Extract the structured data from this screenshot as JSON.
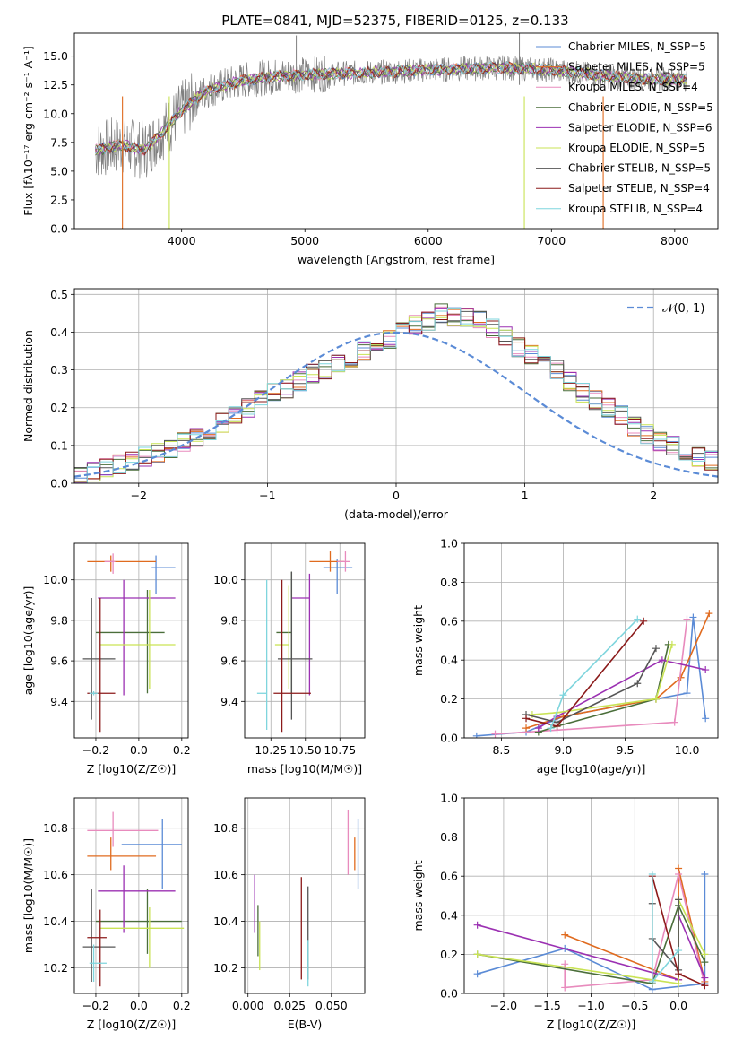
{
  "colors": {
    "chabrier_miles": "#5b8bd6",
    "salpeter_miles": "#e06b1f",
    "kroupa_miles": "#e88bbd",
    "chabrier_elodie": "#4a6e3a",
    "salpeter_elodie": "#9b30b2",
    "kroupa_elodie": "#c9e355",
    "chabrier_stelib": "#555555",
    "salpeter_stelib": "#8b1a1a",
    "kroupa_stelib": "#7fd5dd",
    "spectrum": "#808080",
    "gauss": "#5b8bd6",
    "grid": "#b0b0b0"
  },
  "chart_data": [
    {
      "id": "spectrum",
      "type": "line",
      "title": "PLATE=0841, MJD=52375, FIBERID=0125, z=0.133",
      "xlabel": "wavelength [Angstrom, rest frame]",
      "ylabel": "Flux [fλ10⁻¹⁷ erg cm⁻² s⁻¹ A⁻¹]",
      "xlim": [
        3130,
        8350
      ],
      "ylim": [
        0,
        17
      ],
      "xticks": [
        "4000",
        "5000",
        "6000",
        "7000",
        "8000"
      ],
      "yticks": [
        "0.0",
        "2.5",
        "5.0",
        "7.5",
        "10.0",
        "12.5",
        "15.0"
      ],
      "grid": false,
      "legend_position": "top-right",
      "legend": [
        "Chabrier MILES, N_SSP=5",
        "Salpeter MILES, N_SSP=5",
        "Kroupa MILES, N_SSP=4",
        "Chabrier ELODIE, N_SSP=5",
        "Salpeter ELODIE, N_SSP=6",
        "Kroupa ELODIE, N_SSP=5",
        "Chabrier STELIB, N_SSP=5",
        "Salpeter STELIB, N_SSP=4",
        "Kroupa STELIB, N_SSP=4"
      ],
      "continuum_x": [
        3300,
        3500,
        3700,
        3900,
        4000,
        4200,
        4500,
        4800,
        5000,
        5300,
        5600,
        6000,
        6300,
        6600,
        7000,
        7400,
        7800,
        8100
      ],
      "continuum_y": [
        6.8,
        7.3,
        6.8,
        9.0,
        10.3,
        12.0,
        12.9,
        13.3,
        13.4,
        13.5,
        13.6,
        13.8,
        13.9,
        14.0,
        13.8,
        13.3,
        13.0,
        13.0
      ],
      "drops": [
        [
          3520,
          0
        ],
        [
          3900,
          0
        ],
        [
          6780,
          0
        ],
        [
          7420,
          0
        ]
      ],
      "spikes": [
        [
          6740,
          17
        ],
        [
          4930,
          16.8
        ]
      ]
    },
    {
      "id": "residuals",
      "type": "bar",
      "xlabel": "(data-model)/error",
      "ylabel": "Normed distribution",
      "xlim": [
        -2.5,
        2.5
      ],
      "ylim": [
        0,
        0.515
      ],
      "xticks": [
        "−2",
        "−1",
        "0",
        "1",
        "2"
      ],
      "yticks": [
        "0.0",
        "0.1",
        "0.2",
        "0.3",
        "0.4",
        "0.5"
      ],
      "grid": true,
      "legend_position": "top-right",
      "legend": [
        "𝒩(0, 1)"
      ],
      "bin_width": 0.1,
      "bin_start": -2.5,
      "reference_hist": [
        0.02,
        0.03,
        0.04,
        0.05,
        0.06,
        0.07,
        0.08,
        0.09,
        0.11,
        0.12,
        0.14,
        0.16,
        0.18,
        0.2,
        0.22,
        0.24,
        0.25,
        0.27,
        0.29,
        0.3,
        0.32,
        0.33,
        0.35,
        0.36,
        0.38,
        0.4,
        0.42,
        0.43,
        0.45,
        0.44,
        0.44,
        0.43,
        0.41,
        0.39,
        0.36,
        0.34,
        0.32,
        0.3,
        0.27,
        0.24,
        0.22,
        0.2,
        0.18,
        0.15,
        0.13,
        0.11,
        0.1,
        0.08,
        0.07,
        0.06,
        0.05,
        0.05,
        0.04,
        0.04,
        0.03,
        0.03,
        0.03,
        0.03,
        0.03,
        0.02
      ]
    },
    {
      "id": "age_vs_Z",
      "type": "scatter",
      "xlabel": "Z [log10(Z/Z☉)]",
      "ylabel": "age [log10(age/yr)]",
      "xlim": [
        -0.3,
        0.23
      ],
      "ylim": [
        9.22,
        10.18
      ],
      "xticks": [
        "−0.2",
        "0.0",
        "0.2"
      ],
      "yticks": [
        "9.4",
        "9.6",
        "9.8",
        "10.0"
      ],
      "grid": true,
      "points": [
        {
          "series": "chabrier_miles",
          "x": 0.08,
          "y": 10.06,
          "xerr": [
            0.02,
            0.09
          ],
          "yerr": [
            0.13,
            0.06
          ]
        },
        {
          "series": "salpeter_miles",
          "x": -0.13,
          "y": 10.09,
          "xerr": [
            0.11,
            0.21
          ],
          "yerr": [
            0.05,
            0.03
          ]
        },
        {
          "series": "kroupa_miles",
          "x": -0.12,
          "y": 10.09,
          "xerr": [
            0.04,
            0.01
          ],
          "yerr": [
            0.06,
            0.04
          ]
        },
        {
          "series": "chabrier_elodie",
          "x": 0.04,
          "y": 9.74,
          "xerr": [
            0.24,
            0.08
          ],
          "yerr": [
            0.3,
            0.21
          ]
        },
        {
          "series": "salpeter_elodie",
          "x": -0.07,
          "y": 9.91,
          "xerr": [
            0.12,
            0.24
          ],
          "yerr": [
            0.48,
            0.09
          ]
        },
        {
          "series": "kroupa_elodie",
          "x": 0.05,
          "y": 9.68,
          "xerr": [
            0.23,
            0.12
          ],
          "yerr": [
            0.22,
            0.27
          ]
        },
        {
          "series": "chabrier_stelib",
          "x": -0.22,
          "y": 9.61,
          "xerr": [
            0.04,
            0.11
          ],
          "yerr": [
            0.3,
            0.3
          ]
        },
        {
          "series": "salpeter_stelib",
          "x": -0.18,
          "y": 9.44,
          "xerr": [
            0.06,
            0.07
          ],
          "yerr": [
            0.19,
            0.47
          ]
        },
        {
          "series": "kroupa_stelib",
          "x": -0.21,
          "y": 9.44,
          "xerr": [
            0.02,
            0.02
          ],
          "yerr": [
            0.01,
            0.01
          ]
        }
      ]
    },
    {
      "id": "age_vs_mass",
      "type": "scatter",
      "xlabel": "mass [log10(M/M☉)]",
      "ylabel": "",
      "xlim": [
        10.06,
        10.93
      ],
      "ylim": [
        9.22,
        10.18
      ],
      "xticks": [
        "10.25",
        "10.50",
        "10.75"
      ],
      "yticks": [
        "9.4",
        "9.6",
        "9.8",
        "10.0"
      ],
      "grid": true,
      "points": [
        {
          "series": "chabrier_miles",
          "x": 10.73,
          "y": 10.06,
          "xerr": [
            0.1,
            0.11
          ],
          "yerr": [
            0.13,
            0.04
          ]
        },
        {
          "series": "salpeter_miles",
          "x": 10.68,
          "y": 10.09,
          "xerr": [
            0.15,
            0.1
          ],
          "yerr": [
            0.05,
            0.05
          ]
        },
        {
          "series": "kroupa_miles",
          "x": 10.79,
          "y": 10.09,
          "xerr": [
            0.06,
            0.03
          ],
          "yerr": [
            0.05,
            0.05
          ]
        },
        {
          "series": "chabrier_elodie",
          "x": 10.4,
          "y": 9.74,
          "xerr": [
            0.11,
            0.0
          ],
          "yerr": [
            0.3,
            0.3
          ]
        },
        {
          "series": "salpeter_elodie",
          "x": 10.53,
          "y": 9.91,
          "xerr": [
            0.13,
            0.0
          ],
          "yerr": [
            0.48,
            0.12
          ]
        },
        {
          "series": "kroupa_elodie",
          "x": 10.38,
          "y": 9.68,
          "xerr": [
            0.1,
            0.0
          ],
          "yerr": [
            0.22,
            0.29
          ]
        },
        {
          "series": "chabrier_stelib",
          "x": 10.4,
          "y": 9.61,
          "xerr": [
            0.1,
            0.15
          ],
          "yerr": [
            0.3,
            0.43
          ]
        },
        {
          "series": "salpeter_stelib",
          "x": 10.33,
          "y": 9.44,
          "xerr": [
            0.06,
            0.21
          ],
          "yerr": [
            0.19,
            0.56
          ]
        },
        {
          "series": "kroupa_stelib",
          "x": 10.22,
          "y": 9.44,
          "xerr": [
            0.07,
            0.0
          ],
          "yerr": [
            0.18,
            0.56
          ]
        }
      ]
    },
    {
      "id": "weight_vs_age",
      "type": "line",
      "xlabel": "age  [log10(age/yr)]",
      "ylabel": "mass weight",
      "xlim": [
        8.2,
        10.25
      ],
      "ylim": [
        0,
        1
      ],
      "xticks": [
        "8.5",
        "9.0",
        "9.5",
        "10.0"
      ],
      "yticks": [
        "0.0",
        "0.2",
        "0.4",
        "0.6",
        "0.8",
        "1.0"
      ],
      "grid": true,
      "series": [
        {
          "key": "chabrier_miles",
          "x": [
            8.3,
            8.7,
            9.0,
            10.0,
            10.05,
            10.15
          ],
          "y": [
            0.01,
            0.03,
            0.11,
            0.23,
            0.62,
            0.1
          ]
        },
        {
          "key": "salpeter_miles",
          "x": [
            8.7,
            9.0,
            9.75,
            9.95,
            10.18
          ],
          "y": [
            0.05,
            0.11,
            0.2,
            0.31,
            0.64
          ]
        },
        {
          "key": "kroupa_miles",
          "x": [
            8.45,
            8.95,
            9.9,
            10.0
          ],
          "y": [
            0.02,
            0.04,
            0.08,
            0.61
          ]
        },
        {
          "key": "chabrier_elodie",
          "x": [
            8.8,
            8.95,
            9.75,
            9.85
          ],
          "y": [
            0.03,
            0.06,
            0.2,
            0.48
          ]
        },
        {
          "key": "salpeter_elodie",
          "x": [
            8.8,
            8.95,
            9.8,
            10.15
          ],
          "y": [
            0.05,
            0.11,
            0.4,
            0.35
          ]
        },
        {
          "key": "kroupa_elodie",
          "x": [
            8.75,
            8.95,
            9.75,
            9.88
          ],
          "y": [
            0.12,
            0.13,
            0.2,
            0.48
          ]
        },
        {
          "key": "chabrier_stelib",
          "x": [
            8.7,
            8.95,
            9.6,
            9.75
          ],
          "y": [
            0.12,
            0.08,
            0.28,
            0.46
          ]
        },
        {
          "key": "salpeter_stelib",
          "x": [
            8.7,
            8.95,
            9.65
          ],
          "y": [
            0.1,
            0.06,
            0.6
          ]
        },
        {
          "key": "kroupa_stelib",
          "x": [
            8.9,
            9.0,
            9.6
          ],
          "y": [
            0.05,
            0.22,
            0.61
          ]
        }
      ]
    },
    {
      "id": "mass_vs_Z",
      "type": "scatter",
      "xlabel": "Z [log10(Z/Z☉)]",
      "ylabel": "mass [log10(M/M☉)]",
      "xlim": [
        -0.3,
        0.23
      ],
      "ylim": [
        10.09,
        10.93
      ],
      "xticks": [
        "−0.2",
        "0.0",
        "0.2"
      ],
      "yticks": [
        "10.2",
        "10.4",
        "10.6",
        "10.8"
      ],
      "grid": true,
      "points": [
        {
          "series": "chabrier_miles",
          "x": 0.11,
          "y": 10.73,
          "xerr": [
            0.19,
            0.09
          ],
          "yerr": [
            0.19,
            0.11
          ]
        },
        {
          "series": "salpeter_miles",
          "x": -0.13,
          "y": 10.68,
          "xerr": [
            0.11,
            0.21
          ],
          "yerr": [
            0.06,
            0.08
          ]
        },
        {
          "series": "kroupa_miles",
          "x": -0.12,
          "y": 10.79,
          "xerr": [
            0.12,
            0.21
          ],
          "yerr": [
            0.07,
            0.08
          ]
        },
        {
          "series": "chabrier_elodie",
          "x": 0.04,
          "y": 10.4,
          "xerr": [
            0.24,
            0.16
          ],
          "yerr": [
            0.14,
            0.14
          ]
        },
        {
          "series": "salpeter_elodie",
          "x": -0.07,
          "y": 10.53,
          "xerr": [
            0.12,
            0.24
          ],
          "yerr": [
            0.18,
            0.11
          ]
        },
        {
          "series": "kroupa_elodie",
          "x": 0.05,
          "y": 10.37,
          "xerr": [
            0.23,
            0.16
          ],
          "yerr": [
            0.17,
            0.09
          ]
        },
        {
          "series": "chabrier_stelib",
          "x": -0.22,
          "y": 10.29,
          "xerr": [
            0.04,
            0.11
          ],
          "yerr": [
            0.15,
            0.25
          ]
        },
        {
          "series": "salpeter_stelib",
          "x": -0.18,
          "y": 10.33,
          "xerr": [
            0.06,
            0.03
          ],
          "yerr": [
            0.21,
            0.12
          ]
        },
        {
          "series": "kroupa_stelib",
          "x": -0.21,
          "y": 10.22,
          "xerr": [
            0.02,
            0.06
          ],
          "yerr": [
            0.08,
            0.08
          ]
        }
      ]
    },
    {
      "id": "mass_vs_ebv",
      "type": "scatter",
      "xlabel": "E(B-V)",
      "ylabel": "",
      "xlim": [
        -0.002,
        0.07
      ],
      "ylim": [
        10.09,
        10.93
      ],
      "xticks": [
        "0.000",
        "0.025",
        "0.050"
      ],
      "yticks": [
        "10.2",
        "10.4",
        "10.6",
        "10.8"
      ],
      "grid": true,
      "points": [
        {
          "series": "chabrier_miles",
          "x": 0.066,
          "y": 10.73,
          "xerr": [
            0.0,
            0.0
          ],
          "yerr": [
            0.19,
            0.11
          ]
        },
        {
          "series": "salpeter_miles",
          "x": 0.064,
          "y": 10.68,
          "xerr": [
            0.0,
            0.0
          ],
          "yerr": [
            0.06,
            0.08
          ]
        },
        {
          "series": "kroupa_miles",
          "x": 0.06,
          "y": 10.79,
          "xerr": [
            0.0,
            0.0
          ],
          "yerr": [
            0.19,
            0.09
          ]
        },
        {
          "series": "chabrier_elodie",
          "x": 0.006,
          "y": 10.37,
          "xerr": [
            0.0,
            0.0
          ],
          "yerr": [
            0.12,
            0.1
          ]
        },
        {
          "series": "salpeter_elodie",
          "x": 0.004,
          "y": 10.4,
          "xerr": [
            0.0,
            0.0
          ],
          "yerr": [
            0.05,
            0.2
          ]
        },
        {
          "series": "kroupa_elodie",
          "x": 0.007,
          "y": 10.3,
          "xerr": [
            0.0,
            0.0
          ],
          "yerr": [
            0.11,
            0.1
          ]
        },
        {
          "series": "chabrier_stelib",
          "x": 0.036,
          "y": 10.35,
          "xerr": [
            0.0,
            0.0
          ],
          "yerr": [
            0.2,
            0.2
          ]
        },
        {
          "series": "salpeter_stelib",
          "x": 0.032,
          "y": 10.37,
          "xerr": [
            0.0,
            0.0
          ],
          "yerr": [
            0.22,
            0.22
          ]
        },
        {
          "series": "kroupa_stelib",
          "x": 0.036,
          "y": 10.22,
          "xerr": [
            0.0,
            0.0
          ],
          "yerr": [
            0.1,
            0.1
          ]
        }
      ]
    },
    {
      "id": "weight_vs_Z",
      "type": "line",
      "xlabel": "Z [log10(Z/Z☉)]",
      "ylabel": "mass weight",
      "xlim": [
        -2.45,
        0.45
      ],
      "ylim": [
        0,
        1
      ],
      "xticks": [
        "−2.0",
        "−1.5",
        "−1.0",
        "−0.5",
        "0.0"
      ],
      "yticks": [
        "0.0",
        "0.2",
        "0.4",
        "0.6",
        "0.8",
        "1.0"
      ],
      "grid": true,
      "series": [
        {
          "key": "chabrier_miles",
          "x": [
            -2.3,
            -1.3,
            -0.3,
            0.3,
            0.3
          ],
          "y": [
            0.1,
            0.23,
            0.02,
            0.05,
            0.61
          ]
        },
        {
          "key": "salpeter_miles",
          "x": [
            -1.3,
            0.0,
            0.0,
            0.3
          ],
          "y": [
            0.3,
            0.07,
            0.64,
            0.06
          ]
        },
        {
          "key": "kroupa_miles",
          "x": [
            -1.3,
            -1.3,
            -0.3,
            0.0,
            0.3
          ],
          "y": [
            0.15,
            0.03,
            0.07,
            0.61,
            0.04
          ]
        },
        {
          "key": "chabrier_elodie",
          "x": [
            -2.3,
            -0.3,
            0.0,
            0.3
          ],
          "y": [
            0.2,
            0.05,
            0.45,
            0.16
          ]
        },
        {
          "key": "salpeter_elodie",
          "x": [
            -2.3,
            0.0,
            0.0,
            0.3
          ],
          "y": [
            0.35,
            0.07,
            0.4,
            0.08
          ]
        },
        {
          "key": "kroupa_elodie",
          "x": [
            -2.3,
            0.0,
            0.0,
            0.3
          ],
          "y": [
            0.2,
            0.05,
            0.48,
            0.2
          ]
        },
        {
          "key": "chabrier_stelib",
          "x": [
            -0.3,
            -0.3,
            0.0,
            0.0
          ],
          "y": [
            0.46,
            0.28,
            0.12,
            0.48
          ]
        },
        {
          "key": "salpeter_stelib",
          "x": [
            -0.3,
            0.0,
            0.3
          ],
          "y": [
            0.6,
            0.1,
            0.04
          ]
        },
        {
          "key": "kroupa_stelib",
          "x": [
            -0.3,
            -0.3,
            0.0
          ],
          "y": [
            0.61,
            0.06,
            0.22
          ]
        }
      ]
    }
  ]
}
